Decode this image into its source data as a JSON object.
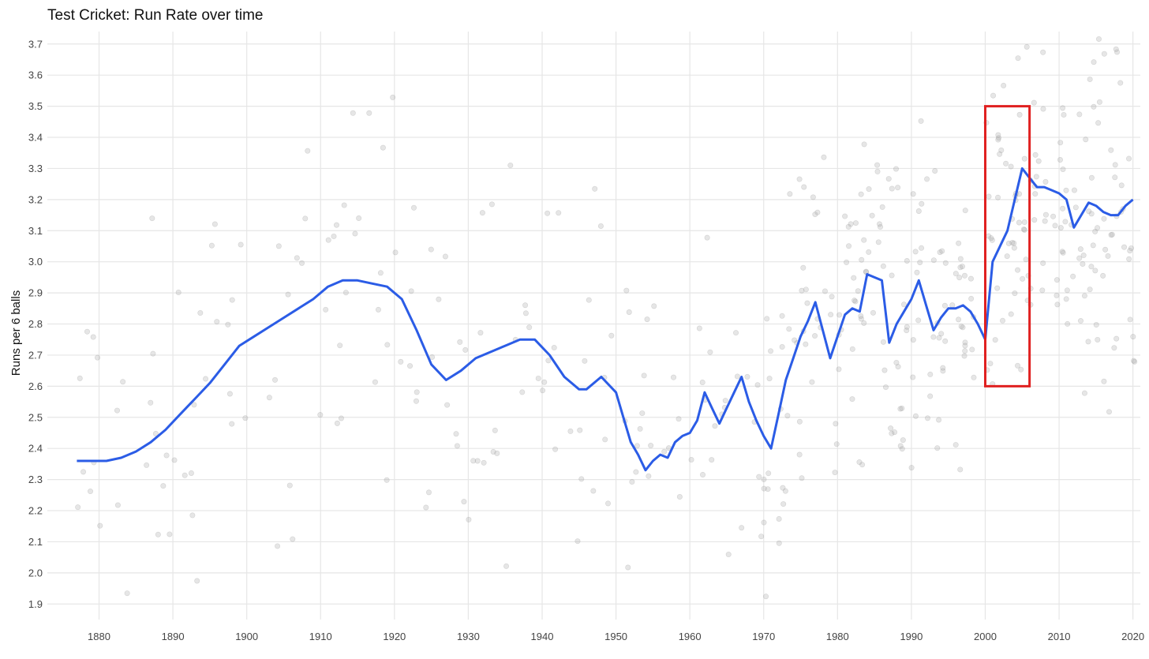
{
  "chart_data": {
    "type": "scatter",
    "title": "Test Cricket: Run Rate over time",
    "xlabel": "",
    "ylabel": "Runs per 6 balls",
    "xlim": [
      1873,
      2021
    ],
    "ylim": [
      1.85,
      3.74
    ],
    "x_ticks": [
      1880,
      1890,
      1900,
      1910,
      1920,
      1930,
      1940,
      1950,
      1960,
      1970,
      1980,
      1990,
      2000,
      2010,
      2020
    ],
    "y_ticks": [
      1.9,
      2.0,
      2.1,
      2.2,
      2.3,
      2.4,
      2.5,
      2.6,
      2.7,
      2.8,
      2.9,
      3.0,
      3.1,
      3.2,
      3.3,
      3.4,
      3.5,
      3.6,
      3.7
    ],
    "grid": true,
    "colors": {
      "trend": "#2b5ce6",
      "points": "#9a9a9a",
      "highlight": "#e02020",
      "grid": "#e6e6e6"
    },
    "trend_line": {
      "x": [
        1877,
        1879,
        1881,
        1883,
        1885,
        1887,
        1889,
        1891,
        1893,
        1895,
        1897,
        1899,
        1901,
        1903,
        1905,
        1907,
        1909,
        1911,
        1913,
        1915,
        1917,
        1919,
        1921,
        1923,
        1925,
        1927,
        1929,
        1931,
        1933,
        1935,
        1937,
        1939,
        1941,
        1943,
        1945,
        1946,
        1948,
        1950,
        1951,
        1952,
        1953,
        1954,
        1955,
        1956,
        1957,
        1958,
        1959,
        1960,
        1961,
        1962,
        1963,
        1964,
        1965,
        1966,
        1967,
        1968,
        1969,
        1970,
        1971,
        1972,
        1973,
        1974,
        1975,
        1976,
        1977,
        1978,
        1979,
        1980,
        1981,
        1982,
        1983,
        1984,
        1985,
        1986,
        1987,
        1988,
        1989,
        1990,
        1991,
        1992,
        1993,
        1994,
        1995,
        1996,
        1997,
        1998,
        1999,
        2000,
        2001,
        2002,
        2003,
        2004,
        2005,
        2006,
        2007,
        2008,
        2009,
        2010,
        2011,
        2012,
        2013,
        2014,
        2015,
        2016,
        2017,
        2018,
        2019,
        2020
      ],
      "y": [
        2.36,
        2.36,
        2.36,
        2.37,
        2.39,
        2.42,
        2.46,
        2.51,
        2.56,
        2.61,
        2.67,
        2.73,
        2.76,
        2.79,
        2.82,
        2.85,
        2.88,
        2.92,
        2.94,
        2.94,
        2.93,
        2.92,
        2.88,
        2.78,
        2.67,
        2.62,
        2.65,
        2.69,
        2.71,
        2.73,
        2.75,
        2.75,
        2.7,
        2.63,
        2.59,
        2.59,
        2.63,
        2.58,
        2.5,
        2.42,
        2.38,
        2.33,
        2.36,
        2.38,
        2.37,
        2.42,
        2.44,
        2.45,
        2.49,
        2.58,
        2.53,
        2.48,
        2.53,
        2.58,
        2.63,
        2.55,
        2.49,
        2.44,
        2.4,
        2.51,
        2.62,
        2.69,
        2.76,
        2.81,
        2.87,
        2.78,
        2.69,
        2.76,
        2.83,
        2.85,
        2.84,
        2.96,
        2.95,
        2.94,
        2.74,
        2.8,
        2.84,
        2.88,
        2.94,
        2.86,
        2.78,
        2.82,
        2.85,
        2.85,
        2.86,
        2.84,
        2.8,
        2.75,
        3.0,
        3.05,
        3.1,
        3.2,
        3.3,
        3.27,
        3.24,
        3.24,
        3.23,
        3.22,
        3.2,
        3.11,
        3.15,
        3.19,
        3.18,
        3.16,
        3.15,
        3.15,
        3.18,
        3.2
      ]
    },
    "highlight_box": {
      "x": [
        2000,
        2006
      ],
      "y": [
        2.6,
        3.5
      ]
    }
  }
}
